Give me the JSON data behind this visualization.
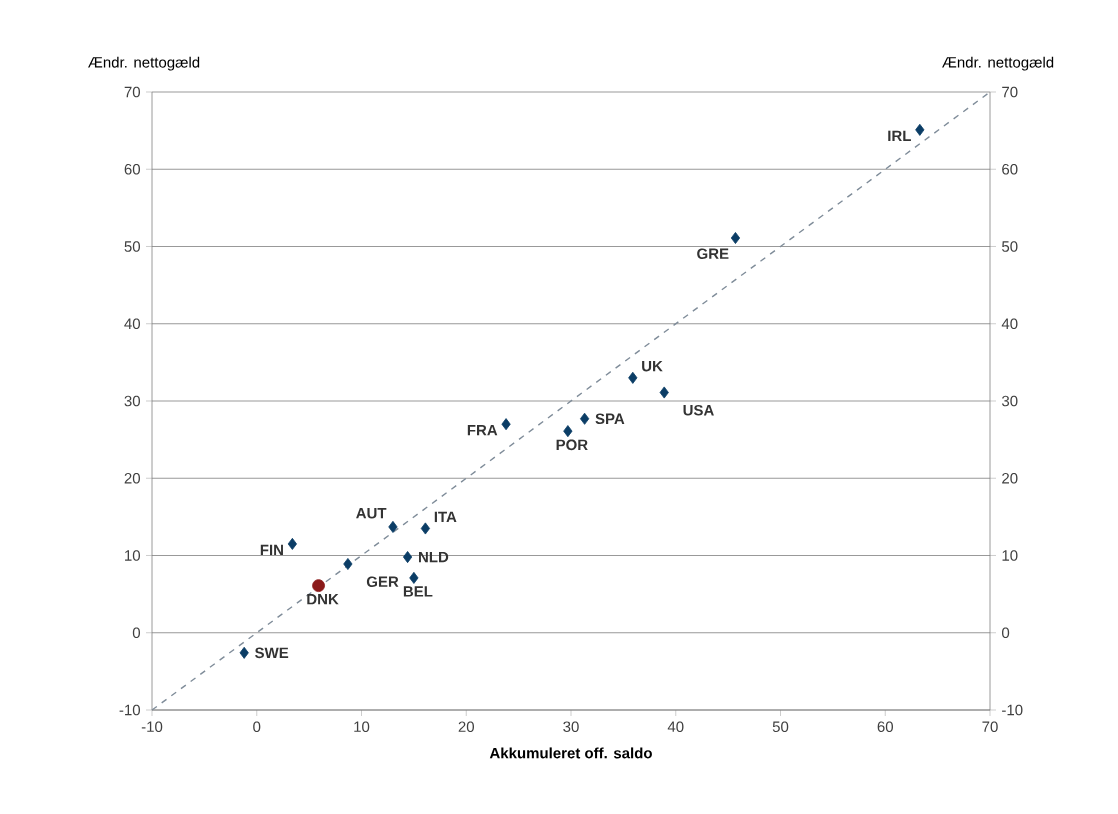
{
  "chart_data": {
    "type": "scatter",
    "xlabel": "Akkumuleret off. saldo",
    "ylabel": "Ændr. nettogæld",
    "y2label": "Ændr. nettogæld",
    "xlim": [
      -10,
      70
    ],
    "xticks": [
      -10,
      0,
      10,
      20,
      30,
      40,
      50,
      60,
      70
    ],
    "ylim": [
      -10,
      70
    ],
    "yticks": [
      -10,
      0,
      10,
      20,
      30,
      40,
      50,
      60,
      70
    ],
    "y2lim": [
      -10,
      70
    ],
    "y2ticks": [
      -10,
      0,
      10,
      20,
      30,
      40,
      50,
      60,
      70
    ],
    "grid": "y",
    "series": [
      {
        "color": "#0b3d66",
        "marker": "diamond",
        "x": [
          63.3,
          45.7,
          35.9,
          38.9,
          31.3,
          29.7,
          23.8,
          13.0,
          16.1,
          14.4,
          15.0,
          8.7,
          3.4,
          -1.2
        ],
        "values": [
          65.1,
          51.1,
          33.0,
          31.1,
          27.7,
          26.1,
          27.0,
          13.7,
          13.5,
          9.8,
          7.1,
          8.9,
          11.5,
          -2.6
        ]
      },
      {
        "color": "#8b1a1a",
        "marker": "circle",
        "x": [
          5.9
        ],
        "values": [
          6.1
        ]
      },
      {
        "type": "line",
        "color": "#7f8c99",
        "line_style": "dashed",
        "marker": "none",
        "x": [
          -10,
          70
        ],
        "values": [
          -10,
          70
        ]
      }
    ],
    "annotations": [
      {
        "text": "IRL",
        "x": 63.3,
        "y": 65.1
      },
      {
        "text": "GRE",
        "x": 45.7,
        "y": 51.1
      },
      {
        "text": "UK",
        "x": 35.9,
        "y": 33.0
      },
      {
        "text": "USA",
        "x": 38.9,
        "y": 31.1
      },
      {
        "text": "SPA",
        "x": 31.3,
        "y": 27.7
      },
      {
        "text": "POR",
        "x": 29.7,
        "y": 26.1
      },
      {
        "text": "FRA",
        "x": 23.8,
        "y": 27.0
      },
      {
        "text": "AUT",
        "x": 13.0,
        "y": 13.7
      },
      {
        "text": "ITA",
        "x": 16.1,
        "y": 13.5
      },
      {
        "text": "NLD",
        "x": 14.4,
        "y": 9.8
      },
      {
        "text": "BEL",
        "x": 15.0,
        "y": 7.1
      },
      {
        "text": "GER",
        "x": 8.7,
        "y": 8.9
      },
      {
        "text": "FIN",
        "x": 3.4,
        "y": 11.5
      },
      {
        "text": "SWE",
        "x": -1.2,
        "y": -2.6
      },
      {
        "text": "DNK",
        "x": 5.9,
        "y": 6.1
      }
    ]
  }
}
